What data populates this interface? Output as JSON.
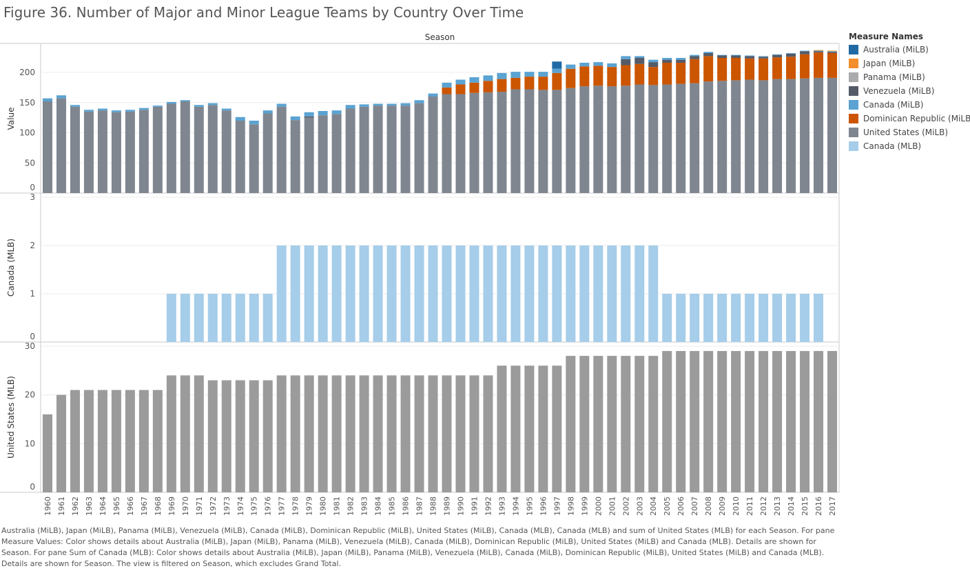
{
  "title": "Figure 36. Number of Major and Minor League Teams by Country Over Time",
  "caption": "Australia (MiLB), Japan (MiLB), Panama (MiLB), Venezuela (MiLB), Canada (MiLB), Dominican Republic (MiLB), United States (MiLB), Canada (MLB), Canada (MLB) and sum of United States (MLB) for each Season.  For pane Measure Values:  Color shows details about Australia (MiLB), Japan (MiLB), Panama (MiLB), Venezuela (MiLB), Canada (MiLB), Dominican Republic (MiLB), United States (MiLB) and Canada (MLB).  Details are shown for Season.  For pane Sum of Canada (MLB):  Color shows details about Australia (MiLB), Japan (MiLB), Panama (MiLB), Venezuela (MiLB), Canada (MiLB), Dominican Republic (MiLB), United States (MiLB) and Canada (MLB).  Details are shown for Season. The view is filtered on Season, which excludes Grand Total.",
  "legend": {
    "title": "Measure Names",
    "items": [
      {
        "label": "Australia (MiLB)",
        "color": "#1f6aa5"
      },
      {
        "label": "Japan (MiLB)",
        "color": "#f28e2b"
      },
      {
        "label": "Panama (MiLB)",
        "color": "#a9abad"
      },
      {
        "label": "Venezuela (MiLB)",
        "color": "#555b68"
      },
      {
        "label": "Canada (MiLB)",
        "color": "#5aa3d2"
      },
      {
        "label": "Dominican Republic (MiLB)",
        "color": "#cc5500"
      },
      {
        "label": "United States (MiLB)",
        "color": "#7f8690"
      },
      {
        "label": "Canada (MLB)",
        "color": "#a6cde9"
      }
    ]
  },
  "chart_data": [
    {
      "type": "bar",
      "stacked": true,
      "column_header": "Season",
      "ylabel": "Value",
      "ylim": [
        0,
        240
      ],
      "yticks": [
        0,
        50,
        100,
        150,
        200
      ],
      "grid": true,
      "categories": [
        "1960",
        "1961",
        "1962",
        "1963",
        "1964",
        "1965",
        "1966",
        "1967",
        "1968",
        "1969",
        "1970",
        "1971",
        "1972",
        "1973",
        "1974",
        "1975",
        "1976",
        "1977",
        "1978",
        "1979",
        "1980",
        "1981",
        "1982",
        "1983",
        "1984",
        "1985",
        "1986",
        "1987",
        "1988",
        "1989",
        "1990",
        "1991",
        "1992",
        "1993",
        "1994",
        "1995",
        "1996",
        "1997",
        "1998",
        "1999",
        "2000",
        "2001",
        "2002",
        "2003",
        "2004",
        "2005",
        "2006",
        "2007",
        "2008",
        "2009",
        "2010",
        "2011",
        "2012",
        "2013",
        "2014",
        "2015",
        "2016",
        "2017"
      ],
      "series": [
        {
          "name": "United States (MiLB)",
          "color": "#7f8690",
          "values": [
            152,
            157,
            143,
            135,
            137,
            134,
            135,
            138,
            143,
            148,
            152,
            143,
            146,
            137,
            120,
            114,
            132,
            143,
            121,
            125,
            129,
            131,
            140,
            143,
            145,
            145,
            145,
            149,
            160,
            164,
            164,
            166,
            167,
            168,
            172,
            172,
            171,
            171,
            174,
            177,
            178,
            177,
            178,
            180,
            179,
            180,
            181,
            182,
            185,
            186,
            187,
            188,
            187,
            189,
            189,
            190,
            191,
            191
          ]
        },
        {
          "name": "Dominican Republic (MiLB)",
          "color": "#cc5500",
          "values": [
            0,
            0,
            0,
            0,
            0,
            0,
            0,
            0,
            0,
            0,
            0,
            0,
            0,
            0,
            0,
            0,
            0,
            0,
            0,
            0,
            0,
            0,
            0,
            0,
            0,
            0,
            0,
            0,
            0,
            11,
            16,
            17,
            19,
            21,
            19,
            21,
            22,
            28,
            32,
            33,
            33,
            32,
            34,
            34,
            30,
            36,
            35,
            40,
            42,
            38,
            37,
            35,
            36,
            36,
            37,
            40,
            42,
            41
          ]
        },
        {
          "name": "Venezuela (MiLB)",
          "color": "#555b68",
          "values": [
            0,
            0,
            0,
            0,
            0,
            0,
            0,
            0,
            0,
            0,
            0,
            0,
            0,
            0,
            0,
            0,
            0,
            0,
            0,
            2,
            0,
            0,
            0,
            0,
            0,
            0,
            0,
            0,
            0,
            0,
            0,
            0,
            0,
            0,
            0,
            0,
            0,
            0,
            0,
            0,
            0,
            0,
            10,
            10,
            8,
            5,
            5,
            5,
            5,
            4,
            4,
            4,
            3,
            4,
            5,
            5,
            2,
            2
          ]
        },
        {
          "name": "Canada (MiLB)",
          "color": "#5aa3d2",
          "values": [
            5,
            5,
            3,
            3,
            3,
            3,
            3,
            3,
            2,
            3,
            2,
            3,
            3,
            3,
            6,
            6,
            5,
            5,
            6,
            7,
            7,
            6,
            6,
            4,
            3,
            3,
            4,
            5,
            5,
            8,
            8,
            9,
            9,
            10,
            10,
            8,
            8,
            7,
            7,
            6,
            6,
            6,
            5,
            3,
            4,
            3,
            3,
            2,
            2,
            1,
            1,
            1,
            1,
            1,
            1,
            1,
            1,
            1
          ]
        },
        {
          "name": "Australia (MiLB)",
          "color": "#1f6aa5",
          "values": [
            0,
            0,
            0,
            0,
            0,
            0,
            0,
            0,
            0,
            0,
            0,
            0,
            0,
            0,
            0,
            0,
            0,
            0,
            0,
            0,
            0,
            0,
            0,
            0,
            0,
            0,
            0,
            0,
            0,
            0,
            0,
            0,
            0,
            0,
            0,
            0,
            0,
            12,
            0,
            0,
            0,
            0,
            0,
            0,
            0,
            0,
            0,
            0,
            0,
            0,
            0,
            0,
            0,
            0,
            0,
            0,
            0,
            0
          ]
        },
        {
          "name": "Japan (MiLB)",
          "color": "#f28e2b",
          "values": [
            0,
            0,
            0,
            0,
            0,
            0,
            0,
            0,
            0,
            0,
            0,
            0,
            0,
            0,
            0,
            0,
            0,
            0,
            0,
            0,
            0,
            0,
            0,
            0,
            0,
            0,
            0,
            0,
            0,
            0,
            0,
            0,
            0,
            0,
            0,
            0,
            0,
            0,
            0,
            0,
            0,
            0,
            0,
            0,
            0,
            0,
            0,
            0,
            0,
            0,
            0,
            0,
            0,
            0,
            0,
            0,
            1,
            1
          ]
        },
        {
          "name": "Panama (MiLB)",
          "color": "#a9abad",
          "values": [
            0,
            0,
            0,
            0,
            0,
            0,
            0,
            0,
            0,
            0,
            0,
            0,
            0,
            0,
            0,
            0,
            0,
            0,
            0,
            0,
            0,
            0,
            0,
            0,
            0,
            0,
            0,
            0,
            0,
            0,
            0,
            0,
            0,
            0,
            0,
            0,
            0,
            0,
            0,
            0,
            0,
            0,
            0,
            0,
            0,
            0,
            0,
            0,
            0,
            0,
            0,
            0,
            0,
            0,
            0,
            0,
            0,
            0
          ]
        }
      ]
    },
    {
      "type": "bar",
      "ylabel": "Canada (MLB)",
      "ylim": [
        0,
        3
      ],
      "yticks": [
        0,
        1,
        2,
        3
      ],
      "grid": true,
      "series": [
        {
          "name": "Canada (MLB)",
          "color": "#a6cde9",
          "values": [
            0,
            0,
            0,
            0,
            0,
            0,
            0,
            0,
            0,
            1,
            1,
            1,
            1,
            1,
            1,
            1,
            1,
            2,
            2,
            2,
            2,
            2,
            2,
            2,
            2,
            2,
            2,
            2,
            2,
            2,
            2,
            2,
            2,
            2,
            2,
            2,
            2,
            2,
            2,
            2,
            2,
            2,
            2,
            2,
            2,
            1,
            1,
            1,
            1,
            1,
            1,
            1,
            1,
            1,
            1,
            1,
            1,
            0
          ]
        }
      ]
    },
    {
      "type": "bar",
      "ylabel": "United States (MLB)",
      "ylim": [
        0,
        30
      ],
      "yticks": [
        0,
        10,
        20,
        30
      ],
      "grid": true,
      "series": [
        {
          "name": "United States (MLB)",
          "color": "#9b9b9b",
          "values": [
            16,
            20,
            21,
            21,
            21,
            21,
            21,
            21,
            21,
            24,
            24,
            24,
            23,
            23,
            23,
            23,
            23,
            24,
            24,
            24,
            24,
            24,
            24,
            24,
            24,
            24,
            24,
            24,
            24,
            24,
            24,
            24,
            24,
            26,
            26,
            26,
            26,
            26,
            28,
            28,
            28,
            28,
            28,
            28,
            28,
            29,
            29,
            29,
            29,
            29,
            29,
            29,
            29,
            29,
            29,
            29,
            29,
            29
          ]
        }
      ]
    }
  ]
}
